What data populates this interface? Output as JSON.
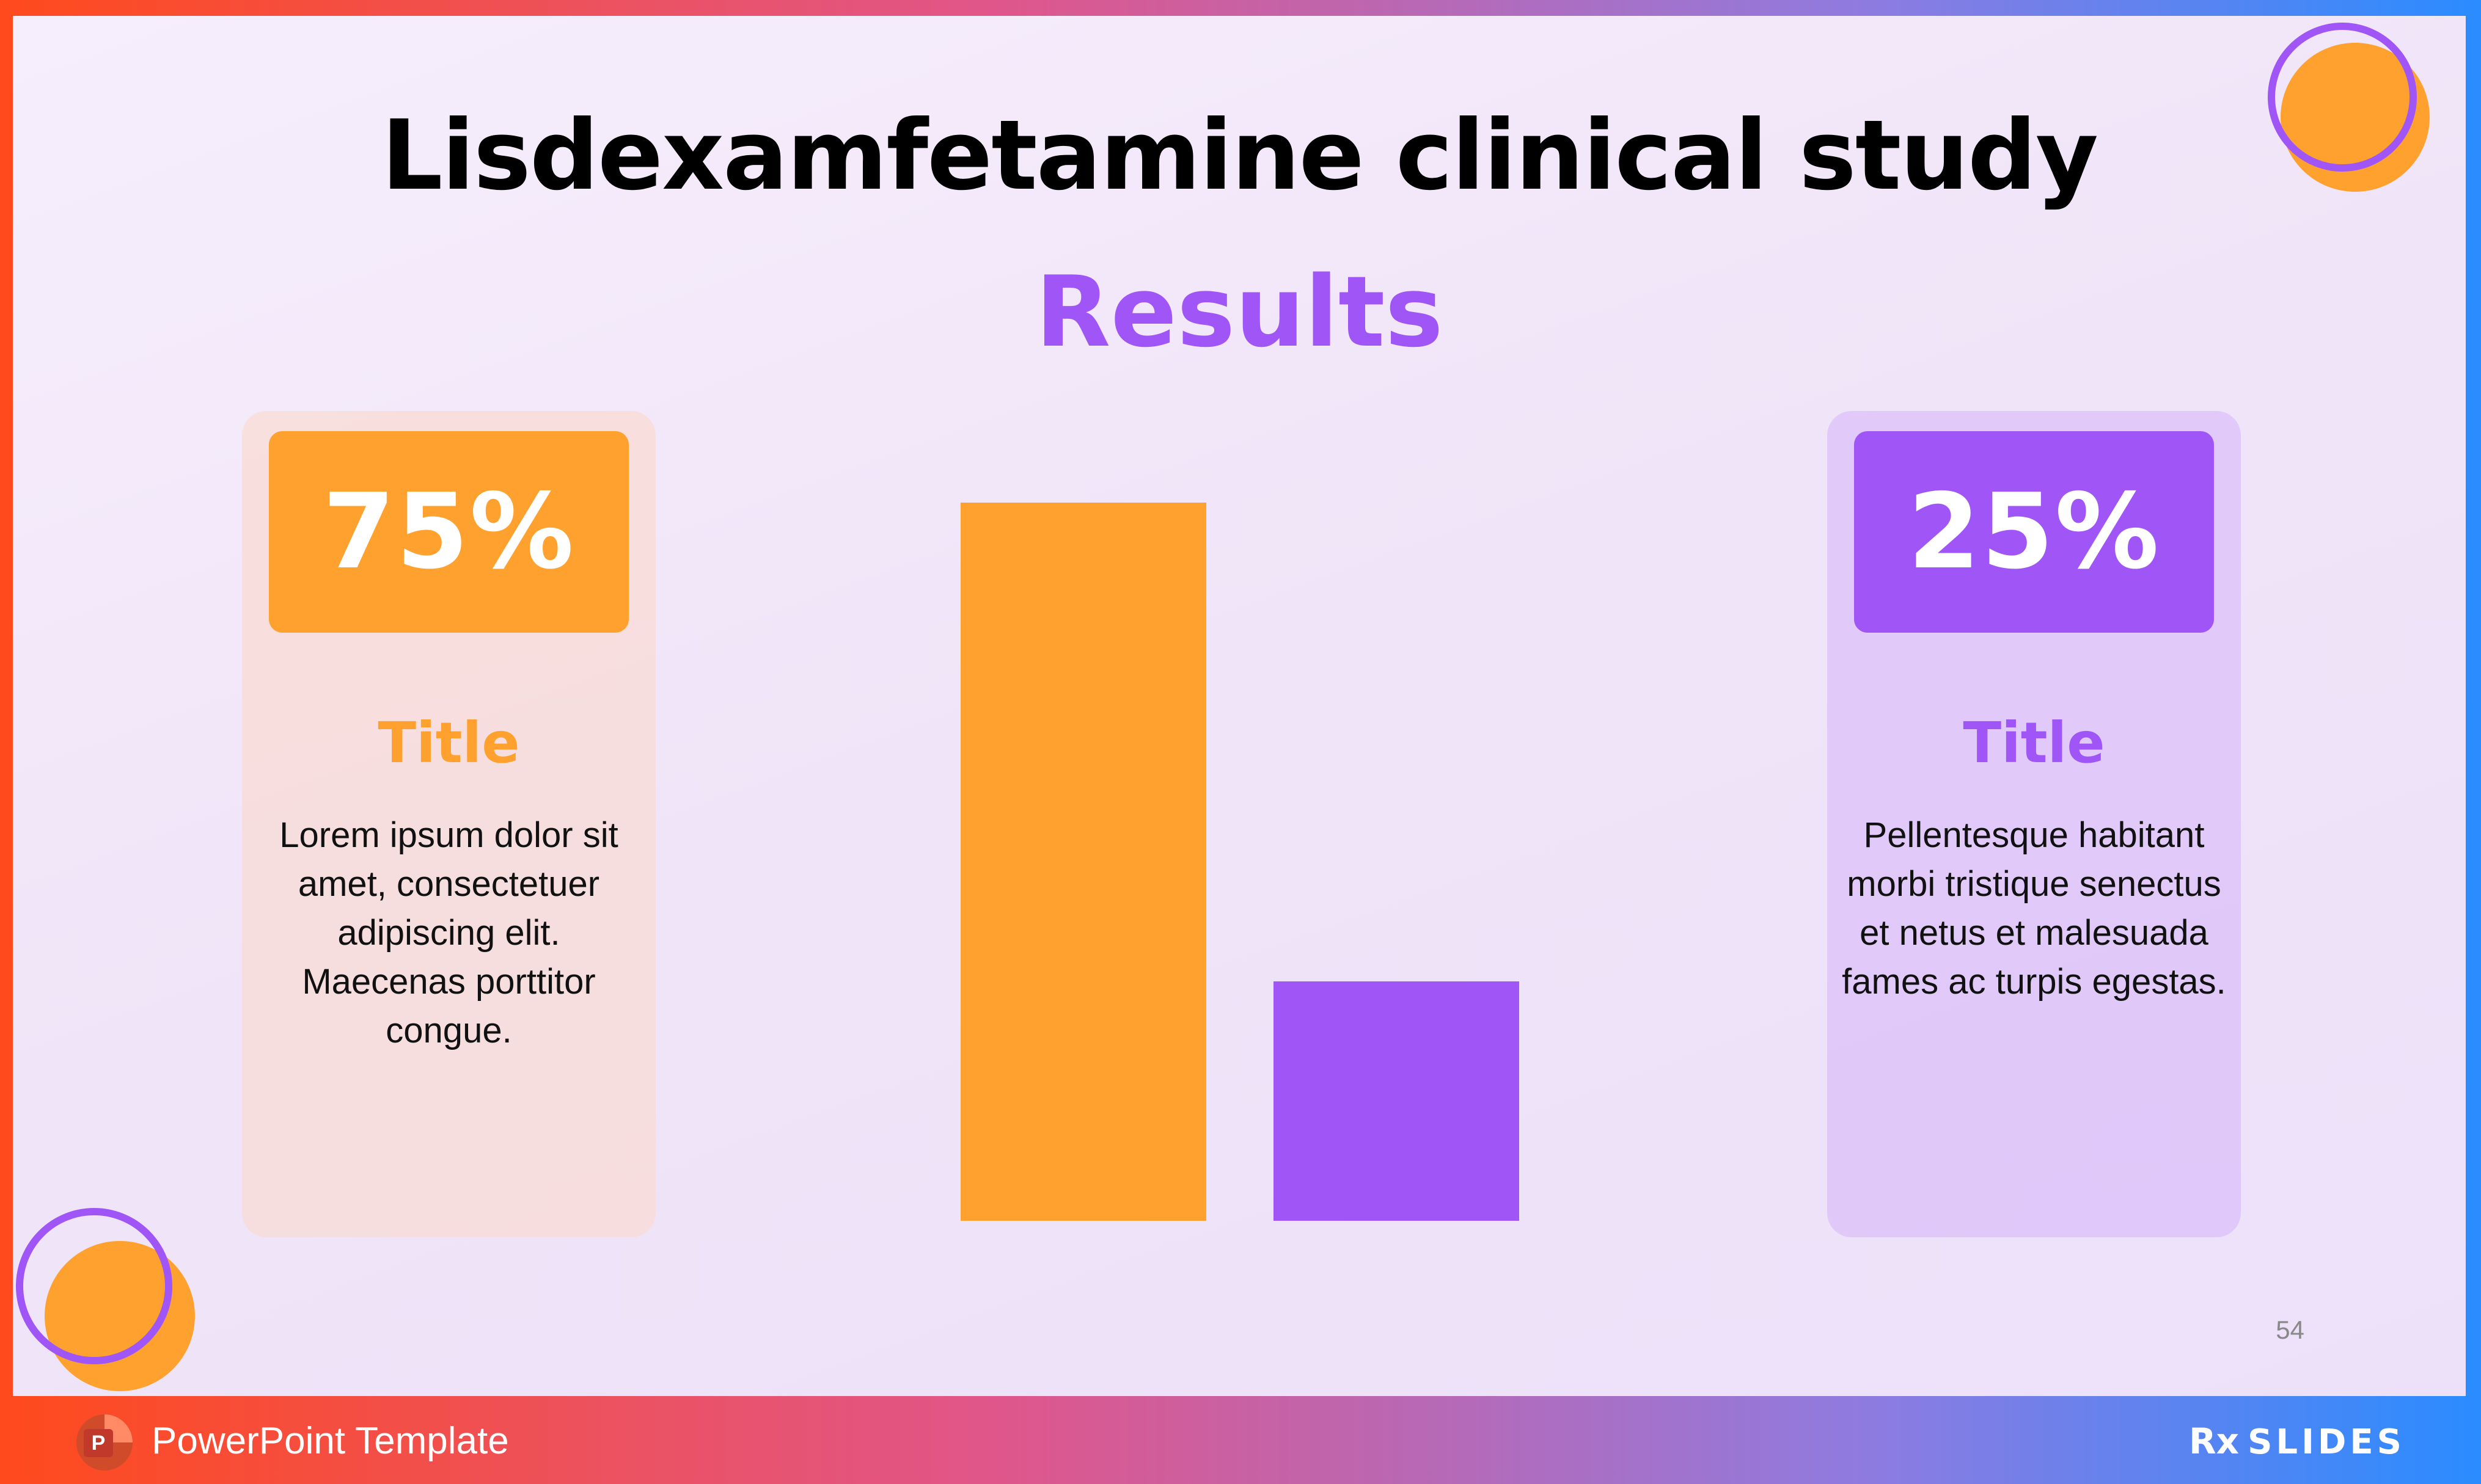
{
  "slide": {
    "title": "Lisdexamfetamine clinical study",
    "subtitle": "Results",
    "page_number": "54"
  },
  "cards": [
    {
      "percent": "75%",
      "title": "Title",
      "text": "Lorem ipsum dolor sit amet, consectetuer adipiscing elit. Maecenas porttitor congue."
    },
    {
      "percent": "25%",
      "title": "Title",
      "text": "Pellentesque habitant morbi tristique senectus et netus et malesuada fames ac turpis egestas."
    }
  ],
  "footer": {
    "label": "PowerPoint Template",
    "brand": "SLIDES",
    "brand_prefix": "Rx",
    "ppt_icon_letter": "P"
  },
  "chart_data": {
    "type": "bar",
    "categories": [
      "",
      ""
    ],
    "values": [
      75,
      25
    ],
    "colors": [
      "#ffa12e",
      "#a056f7"
    ],
    "ylim": [
      0,
      75
    ],
    "title": "",
    "xlabel": "",
    "ylabel": "",
    "grid": false
  },
  "colors": {
    "orange": "#ffa12e",
    "purple": "#a056f7",
    "background": "#f3e9fb"
  },
  "icons": {
    "footer_app": "powerpoint-icon",
    "decoration": "circle-ring-decoration"
  }
}
